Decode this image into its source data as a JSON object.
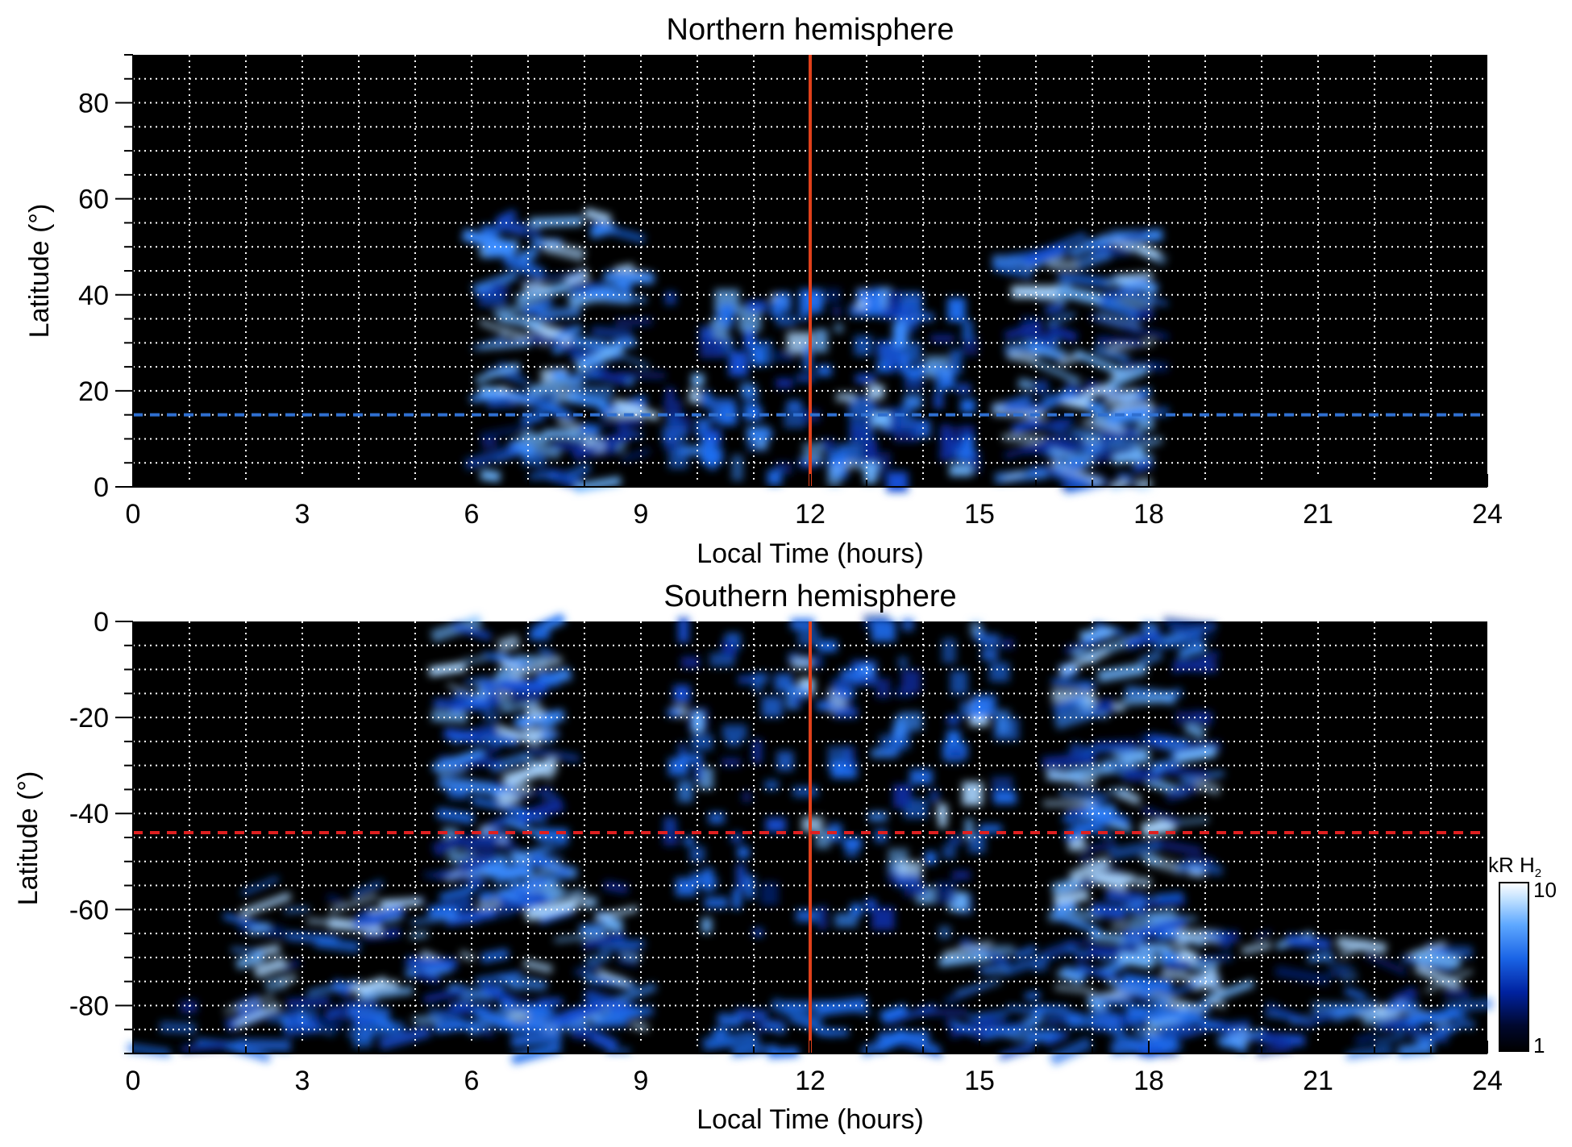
{
  "chart_data": [
    {
      "type": "heatmap",
      "title": "Northern hemisphere",
      "xlabel": "Local Time (hours)",
      "ylabel": "Latitude (°)",
      "xlim": [
        0,
        24
      ],
      "ylim": [
        0,
        90
      ],
      "xticks": [
        0,
        3,
        6,
        9,
        12,
        15,
        18,
        21,
        24
      ],
      "yticks": [
        0,
        20,
        40,
        60,
        80
      ],
      "grid": "on",
      "reference_lines": [
        {
          "orientation": "vertical",
          "x": 12,
          "color": "#e0401a",
          "style": "solid"
        },
        {
          "orientation": "horizontal",
          "y": 15,
          "color": "#2f6fd0",
          "style": "dashed"
        }
      ],
      "emission_regions": [
        {
          "x": [
            6.3,
            9.0
          ],
          "y": [
            0,
            57
          ],
          "level": "bright"
        },
        {
          "x": [
            9.5,
            15.0
          ],
          "y": [
            0,
            40
          ],
          "level": "patchy"
        },
        {
          "x": [
            15.5,
            18.0
          ],
          "y": [
            0,
            53
          ],
          "level": "bright"
        }
      ]
    },
    {
      "type": "heatmap",
      "title": "Southern hemisphere",
      "xlabel": "Local Time (hours)",
      "ylabel": "Latitude (°)",
      "xlim": [
        0,
        24
      ],
      "ylim": [
        -90,
        0
      ],
      "xticks": [
        0,
        3,
        6,
        9,
        12,
        15,
        18,
        21,
        24
      ],
      "yticks": [
        0,
        -20,
        -40,
        -60,
        -80
      ],
      "grid": "on",
      "reference_lines": [
        {
          "orientation": "vertical",
          "x": 12,
          "color": "#e0401a",
          "style": "solid"
        },
        {
          "orientation": "horizontal",
          "y": -44,
          "color": "#e02020",
          "style": "dashed"
        }
      ],
      "emission_regions": [
        {
          "x": [
            5.5,
            7.5
          ],
          "y": [
            -60,
            0
          ],
          "level": "bright"
        },
        {
          "x": [
            9.5,
            15.5
          ],
          "y": [
            -65,
            0
          ],
          "level": "patchy"
        },
        {
          "x": [
            16.5,
            19.0
          ],
          "y": [
            -70,
            0
          ],
          "level": "bright"
        },
        {
          "x": [
            2.0,
            9.0
          ],
          "y": [
            -85,
            -55
          ],
          "level": "bright"
        },
        {
          "x": [
            14.5,
            23.5
          ],
          "y": [
            -90,
            -65
          ],
          "level": "bright"
        },
        {
          "x": [
            0,
            24
          ],
          "y": [
            -90,
            -80
          ],
          "level": "moderate"
        }
      ]
    }
  ],
  "colorbar": {
    "label_main": "kR H",
    "label_sub": "2",
    "min_label": "1",
    "max_label": "10",
    "scale": "log",
    "range": [
      1,
      10
    ],
    "colors": [
      "#000000",
      "#00082e",
      "#0022a0",
      "#1a64e6",
      "#5ea8ff",
      "#bfe0ff",
      "#ffffff"
    ]
  }
}
